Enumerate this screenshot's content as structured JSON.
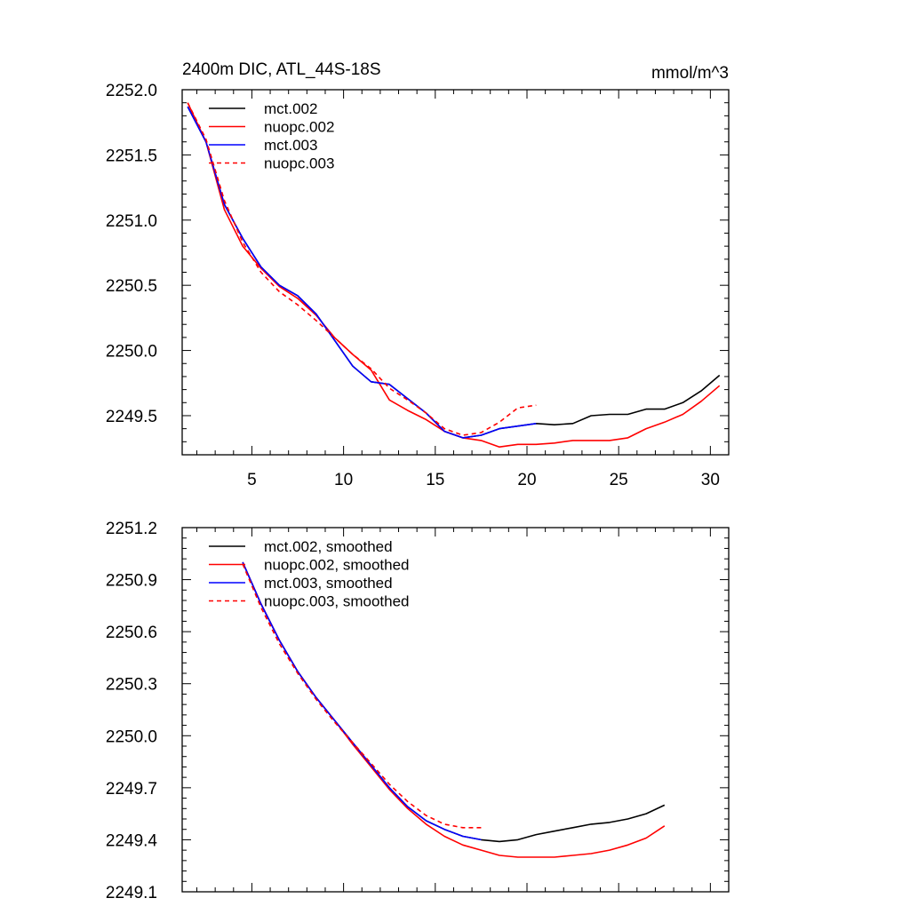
{
  "chart_data": [
    {
      "type": "line",
      "title": "2400m DIC, ATL_44S-18S",
      "units": "mmol/m^3",
      "xlabel": "",
      "ylabel": "",
      "xlim": [
        1.2,
        31
      ],
      "ylim": [
        2249.2,
        2252.0
      ],
      "xticks": [
        5,
        10,
        15,
        20,
        25,
        30
      ],
      "xtick_labels": [
        "5",
        "10",
        "15",
        "20",
        "25",
        "30"
      ],
      "yticks": [
        2249.5,
        2250.0,
        2250.5,
        2251.0,
        2251.5,
        2252.0
      ],
      "ytick_labels": [
        "2249.5",
        "2250.0",
        "2250.5",
        "2251.0",
        "2251.5",
        "2252.0"
      ],
      "legend_position": "top-left",
      "series": [
        {
          "name": "mct.002",
          "color": "#000000",
          "dash": "solid",
          "x": [
            1.5,
            2.5,
            3.5,
            4.5,
            5.5,
            6.5,
            7.5,
            8.5,
            9.5,
            10.5,
            11.5,
            12.5,
            13.5,
            14.5,
            15.5,
            16.5,
            17.5,
            18.5,
            19.5,
            20.5,
            21.5,
            22.5,
            23.5,
            24.5,
            25.5,
            26.5,
            27.5,
            28.5,
            29.5,
            30.5
          ],
          "values": [
            2251.87,
            2251.6,
            2251.12,
            2250.86,
            2250.64,
            2250.5,
            2250.42,
            2250.28,
            2250.08,
            2249.88,
            2249.76,
            2249.74,
            2249.63,
            2249.52,
            2249.38,
            2249.33,
            2249.35,
            2249.4,
            2249.42,
            2249.44,
            2249.43,
            2249.44,
            2249.5,
            2249.51,
            2249.51,
            2249.55,
            2249.55,
            2249.6,
            2249.69,
            2249.81
          ]
        },
        {
          "name": "nuopc.002",
          "color": "#ff0000",
          "dash": "solid",
          "x": [
            1.5,
            2.5,
            3.5,
            4.5,
            5.5,
            6.5,
            7.5,
            8.5,
            9.5,
            10.5,
            11.5,
            12.5,
            13.5,
            14.5,
            15.5,
            16.5,
            17.5,
            18.5,
            19.5,
            20.5,
            21.5,
            22.5,
            23.5,
            24.5,
            25.5,
            26.5,
            27.5,
            28.5,
            29.5,
            30.5
          ],
          "values": [
            2251.9,
            2251.6,
            2251.08,
            2250.8,
            2250.63,
            2250.49,
            2250.4,
            2250.27,
            2250.1,
            2249.97,
            2249.85,
            2249.62,
            2249.54,
            2249.47,
            2249.38,
            2249.33,
            2249.31,
            2249.26,
            2249.28,
            2249.28,
            2249.29,
            2249.31,
            2249.31,
            2249.31,
            2249.33,
            2249.4,
            2249.45,
            2249.51,
            2249.61,
            2249.73
          ]
        },
        {
          "name": "mct.003",
          "color": "#0000ff",
          "dash": "solid",
          "x": [
            1.5,
            2.5,
            3.5,
            4.5,
            5.5,
            6.5,
            7.5,
            8.5,
            9.5,
            10.5,
            11.5,
            12.5,
            13.5,
            14.5,
            15.5,
            16.5,
            17.5,
            18.5,
            19.5,
            20.5
          ],
          "values": [
            2251.87,
            2251.6,
            2251.12,
            2250.86,
            2250.64,
            2250.5,
            2250.42,
            2250.28,
            2250.08,
            2249.88,
            2249.76,
            2249.74,
            2249.63,
            2249.52,
            2249.38,
            2249.33,
            2249.35,
            2249.4,
            2249.42,
            2249.44
          ]
        },
        {
          "name": "nuopc.003",
          "color": "#ff0000",
          "dash": "dashed",
          "x": [
            1.5,
            2.5,
            3.5,
            4.5,
            5.5,
            6.5,
            7.5,
            8.5,
            9.5,
            10.5,
            11.5,
            12.5,
            13.5,
            14.5,
            15.5,
            16.5,
            17.5,
            18.5,
            19.5,
            20.5
          ],
          "values": [
            2251.9,
            2251.62,
            2251.15,
            2250.83,
            2250.6,
            2250.45,
            2250.35,
            2250.23,
            2250.1,
            2249.97,
            2249.86,
            2249.71,
            2249.62,
            2249.52,
            2249.4,
            2249.35,
            2249.37,
            2249.45,
            2249.56,
            2249.58
          ]
        }
      ]
    },
    {
      "type": "line",
      "title": "",
      "xlabel": "",
      "ylabel": "",
      "xlim": [
        1.2,
        31
      ],
      "ylim": [
        2249.1,
        2251.2
      ],
      "xticks": [
        5,
        10,
        15,
        20,
        25,
        30
      ],
      "xtick_labels": [],
      "yticks": [
        2249.1,
        2249.4,
        2249.7,
        2250.0,
        2250.3,
        2250.6,
        2250.9,
        2251.2
      ],
      "ytick_labels": [
        "2249.1",
        "2249.4",
        "2249.7",
        "2250.0",
        "2250.3",
        "2250.6",
        "2250.9",
        "2251.2"
      ],
      "legend_position": "top-left",
      "series": [
        {
          "name": "mct.002, smoothed",
          "color": "#000000",
          "dash": "solid",
          "x": [
            4.5,
            5.5,
            6.5,
            7.5,
            8.5,
            9.5,
            10.5,
            11.5,
            12.5,
            13.5,
            14.5,
            15.5,
            16.5,
            17.5,
            18.5,
            19.5,
            20.5,
            21.5,
            22.5,
            23.5,
            24.5,
            25.5,
            26.5,
            27.5
          ],
          "values": [
            2251.0,
            2250.76,
            2250.55,
            2250.37,
            2250.22,
            2250.09,
            2249.96,
            2249.83,
            2249.7,
            2249.59,
            2249.51,
            2249.46,
            2249.42,
            2249.4,
            2249.39,
            2249.4,
            2249.43,
            2249.45,
            2249.47,
            2249.49,
            2249.5,
            2249.52,
            2249.55,
            2249.6
          ]
        },
        {
          "name": "nuopc.002, smoothed",
          "color": "#ff0000",
          "dash": "solid",
          "x": [
            4.5,
            5.5,
            6.5,
            7.5,
            8.5,
            9.5,
            10.5,
            11.5,
            12.5,
            13.5,
            14.5,
            15.5,
            16.5,
            17.5,
            18.5,
            19.5,
            20.5,
            21.5,
            22.5,
            23.5,
            24.5,
            25.5,
            26.5,
            27.5
          ],
          "values": [
            2251.0,
            2250.76,
            2250.55,
            2250.37,
            2250.22,
            2250.09,
            2249.95,
            2249.82,
            2249.69,
            2249.58,
            2249.49,
            2249.42,
            2249.37,
            2249.34,
            2249.31,
            2249.3,
            2249.3,
            2249.3,
            2249.31,
            2249.32,
            2249.34,
            2249.37,
            2249.41,
            2249.48
          ]
        },
        {
          "name": "mct.003, smoothed",
          "color": "#0000ff",
          "dash": "solid",
          "x": [
            4.5,
            5.5,
            6.5,
            7.5,
            8.5,
            9.5,
            10.5,
            11.5,
            12.5,
            13.5,
            14.5,
            15.5,
            16.5,
            17.5
          ],
          "values": [
            2251.0,
            2250.76,
            2250.55,
            2250.37,
            2250.22,
            2250.09,
            2249.96,
            2249.83,
            2249.7,
            2249.59,
            2249.51,
            2249.46,
            2249.42,
            2249.4
          ]
        },
        {
          "name": "nuopc.003, smoothed",
          "color": "#ff0000",
          "dash": "dashed",
          "x": [
            4.5,
            5.5,
            6.5,
            7.5,
            8.5,
            9.5,
            10.5,
            11.5,
            12.5,
            13.5,
            14.5,
            15.5,
            16.5,
            17.5
          ],
          "values": [
            2250.99,
            2250.74,
            2250.53,
            2250.36,
            2250.21,
            2250.08,
            2249.96,
            2249.84,
            2249.72,
            2249.62,
            2249.54,
            2249.49,
            2249.47,
            2249.47
          ]
        }
      ]
    }
  ]
}
